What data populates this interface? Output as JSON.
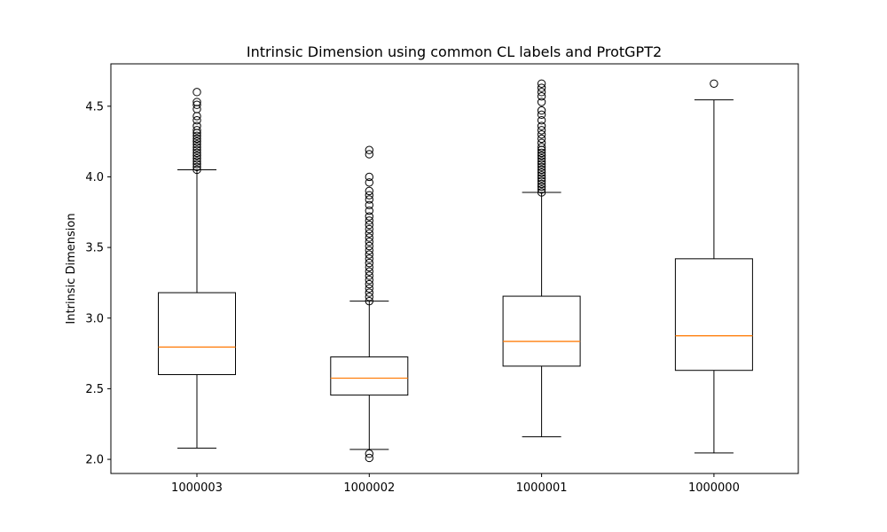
{
  "chart_data": {
    "type": "boxplot",
    "title": "Intrinsic Dimension using common CL labels and ProtGPT2",
    "xlabel": "",
    "ylabel": "Intrinsic Dimension",
    "ylim": [
      1.9,
      4.8
    ],
    "yticks": [
      2.0,
      2.5,
      3.0,
      3.5,
      4.0,
      4.5
    ],
    "ytick_labels": [
      "2.0",
      "2.5",
      "3.0",
      "3.5",
      "4.0",
      "4.5"
    ],
    "grid": false,
    "median_color": "#ff7f0e",
    "box_color": "#000000",
    "categories": [
      "1000003",
      "1000002",
      "1000001",
      "1000000"
    ],
    "boxes": [
      {
        "label": "1000003",
        "whisker_low": 2.08,
        "q1": 2.6,
        "median": 2.795,
        "q3": 3.18,
        "whisker_high": 4.05,
        "fliers": [
          4.05,
          4.07,
          4.09,
          4.11,
          4.13,
          4.15,
          4.17,
          4.19,
          4.21,
          4.23,
          4.25,
          4.27,
          4.29,
          4.31,
          4.33,
          4.36,
          4.4,
          4.43,
          4.48,
          4.51,
          4.53,
          4.6
        ]
      },
      {
        "label": "1000002",
        "whisker_low": 2.07,
        "q1": 2.455,
        "median": 2.575,
        "q3": 2.725,
        "whisker_high": 3.12,
        "fliers": [
          2.01,
          2.04,
          3.12,
          3.15,
          3.18,
          3.21,
          3.24,
          3.27,
          3.3,
          3.33,
          3.36,
          3.39,
          3.42,
          3.45,
          3.48,
          3.51,
          3.54,
          3.57,
          3.6,
          3.63,
          3.66,
          3.69,
          3.72,
          3.76,
          3.8,
          3.84,
          3.87,
          3.9,
          3.96,
          4.0,
          4.16,
          4.19
        ]
      },
      {
        "label": "1000001",
        "whisker_low": 2.16,
        "q1": 2.66,
        "median": 2.835,
        "q3": 3.155,
        "whisker_high": 3.89,
        "fliers": [
          3.89,
          3.91,
          3.93,
          3.95,
          3.97,
          3.99,
          4.01,
          4.03,
          4.05,
          4.07,
          4.09,
          4.11,
          4.13,
          4.15,
          4.17,
          4.19,
          4.21,
          4.24,
          4.27,
          4.3,
          4.33,
          4.36,
          4.4,
          4.44,
          4.47,
          4.53,
          4.57,
          4.6,
          4.63,
          4.66
        ]
      },
      {
        "label": "1000000",
        "whisker_low": 2.045,
        "q1": 2.63,
        "median": 2.875,
        "q3": 3.42,
        "whisker_high": 4.545,
        "fliers": [
          4.66
        ]
      }
    ]
  }
}
